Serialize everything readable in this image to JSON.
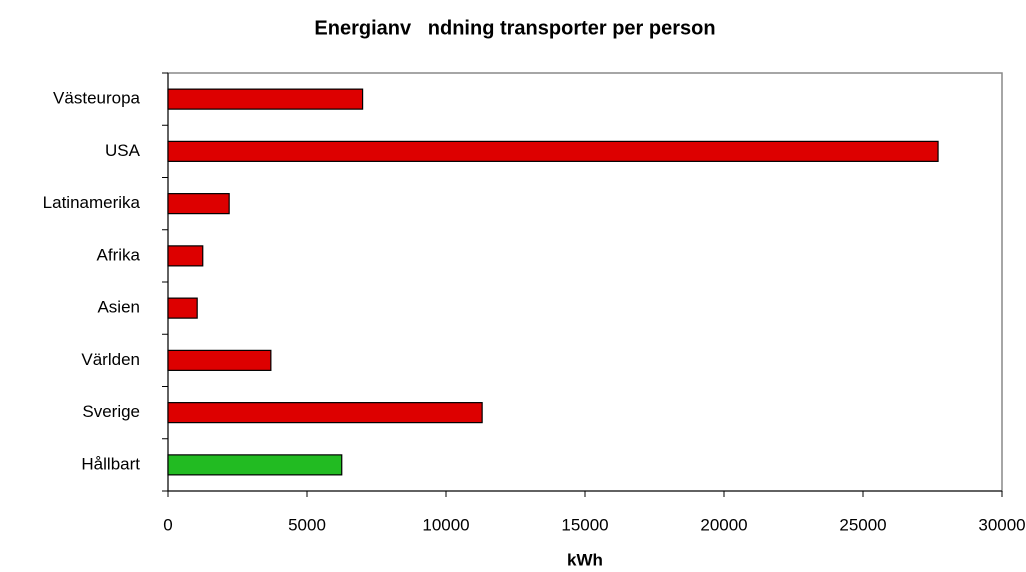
{
  "chart_data": {
    "type": "bar",
    "orientation": "horizontal",
    "title": "Energianv   ndning transporter per person",
    "x_label": "kWh",
    "categories": [
      "Västeuropa",
      "USA",
      "Latinamerika",
      "Afrika",
      "Asien",
      "Världen",
      "Sverige",
      "Hållbart"
    ],
    "values": [
      7000,
      27700,
      2200,
      1250,
      1050,
      3700,
      11300,
      6250
    ],
    "colors": [
      "#dd0000",
      "#dd0000",
      "#dd0000",
      "#dd0000",
      "#dd0000",
      "#dd0000",
      "#dd0000",
      "#22bb22"
    ],
    "xlim": [
      0,
      30000
    ],
    "xticks": [
      0,
      5000,
      10000,
      15000,
      20000,
      25000,
      30000
    ],
    "grid": false
  }
}
